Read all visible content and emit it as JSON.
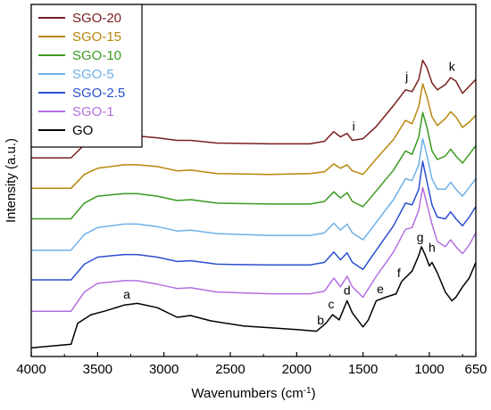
{
  "chart_data": {
    "type": "line",
    "xlabel": "Wavenumbers (cm",
    "xlabel_sup": "-1",
    "xlabel_tail": ")",
    "ylabel": "Intensity (a.u.)",
    "x_reversed": true,
    "xlim": [
      4000,
      650
    ],
    "x_ticks": [
      {
        "value": 4000,
        "label": "4000"
      },
      {
        "value": 3500,
        "label": "3500"
      },
      {
        "value": 3000,
        "label": "3000"
      },
      {
        "value": 2500,
        "label": "2500"
      },
      {
        "value": 2000,
        "label": "2000"
      },
      {
        "value": 1500,
        "label": "1500"
      },
      {
        "value": 1000,
        "label": "1000"
      },
      {
        "value": 650,
        "label": "650"
      }
    ],
    "y_ticks_shown": false,
    "legend_position": "top-left",
    "series": [
      {
        "name": "SGO-20",
        "color": "#7a1f1f",
        "offset": 10.6,
        "points": [
          [
            4000,
            0.6
          ],
          [
            3700,
            0.6
          ],
          [
            3600,
            1.35
          ],
          [
            3500,
            1.7
          ],
          [
            3300,
            1.85
          ],
          [
            3200,
            1.85
          ],
          [
            3050,
            1.75
          ],
          [
            2900,
            1.6
          ],
          [
            2800,
            1.6
          ],
          [
            2600,
            1.45
          ],
          [
            2200,
            1.4
          ],
          [
            1900,
            1.4
          ],
          [
            1790,
            1.55
          ],
          [
            1720,
            2.1
          ],
          [
            1670,
            1.8
          ],
          [
            1620,
            2.0
          ],
          [
            1580,
            1.6
          ],
          [
            1500,
            1.7
          ],
          [
            1400,
            2.4
          ],
          [
            1270,
            3.6
          ],
          [
            1180,
            4.5
          ],
          [
            1130,
            4.4
          ],
          [
            1080,
            5.1
          ],
          [
            1050,
            6.2
          ],
          [
            1020,
            5.8
          ],
          [
            980,
            4.9
          ],
          [
            940,
            4.5
          ],
          [
            880,
            4.8
          ],
          [
            840,
            5.2
          ],
          [
            800,
            5.0
          ],
          [
            750,
            4.3
          ],
          [
            700,
            4.7
          ],
          [
            650,
            5.1
          ]
        ]
      },
      {
        "name": "SGO-15",
        "color": "#b8860b",
        "offset": 8.85,
        "points": [
          [
            4000,
            0.6
          ],
          [
            3700,
            0.6
          ],
          [
            3600,
            1.4
          ],
          [
            3500,
            1.75
          ],
          [
            3300,
            1.95
          ],
          [
            3200,
            1.95
          ],
          [
            3050,
            1.85
          ],
          [
            2900,
            1.6
          ],
          [
            2800,
            1.65
          ],
          [
            2600,
            1.45
          ],
          [
            2200,
            1.4
          ],
          [
            1900,
            1.45
          ],
          [
            1790,
            1.55
          ],
          [
            1720,
            2.0
          ],
          [
            1670,
            1.75
          ],
          [
            1620,
            1.95
          ],
          [
            1580,
            1.6
          ],
          [
            1500,
            1.4
          ],
          [
            1400,
            2.3
          ],
          [
            1270,
            3.4
          ],
          [
            1180,
            4.5
          ],
          [
            1130,
            4.3
          ],
          [
            1080,
            5.3
          ],
          [
            1050,
            6.6
          ],
          [
            1020,
            5.9
          ],
          [
            980,
            4.7
          ],
          [
            940,
            4.2
          ],
          [
            880,
            4.6
          ],
          [
            840,
            5.0
          ],
          [
            800,
            4.7
          ],
          [
            750,
            4.1
          ],
          [
            700,
            4.4
          ],
          [
            650,
            4.8
          ]
        ]
      },
      {
        "name": "SGO-10",
        "color": "#3a9a1f",
        "offset": 7.1,
        "points": [
          [
            4000,
            0.6
          ],
          [
            3700,
            0.6
          ],
          [
            3600,
            1.5
          ],
          [
            3500,
            1.9
          ],
          [
            3300,
            2.05
          ],
          [
            3200,
            2.05
          ],
          [
            3050,
            1.9
          ],
          [
            2900,
            1.65
          ],
          [
            2800,
            1.7
          ],
          [
            2600,
            1.5
          ],
          [
            2200,
            1.45
          ],
          [
            1900,
            1.45
          ],
          [
            1790,
            1.6
          ],
          [
            1720,
            2.15
          ],
          [
            1670,
            1.8
          ],
          [
            1620,
            2.1
          ],
          [
            1580,
            1.6
          ],
          [
            1500,
            1.3
          ],
          [
            1400,
            2.2
          ],
          [
            1270,
            3.4
          ],
          [
            1180,
            4.5
          ],
          [
            1130,
            4.3
          ],
          [
            1080,
            5.3
          ],
          [
            1050,
            6.7
          ],
          [
            1020,
            5.9
          ],
          [
            980,
            4.5
          ],
          [
            940,
            4.0
          ],
          [
            880,
            4.2
          ],
          [
            840,
            4.6
          ],
          [
            800,
            4.2
          ],
          [
            750,
            3.8
          ],
          [
            700,
            4.3
          ],
          [
            650,
            4.8
          ]
        ]
      },
      {
        "name": "SGO-5",
        "color": "#6fb0e8",
        "offset": 5.3,
        "points": [
          [
            4000,
            0.6
          ],
          [
            3700,
            0.6
          ],
          [
            3600,
            1.5
          ],
          [
            3500,
            1.9
          ],
          [
            3300,
            2.1
          ],
          [
            3200,
            2.1
          ],
          [
            3050,
            1.95
          ],
          [
            2900,
            1.7
          ],
          [
            2800,
            1.75
          ],
          [
            2600,
            1.55
          ],
          [
            2200,
            1.45
          ],
          [
            1900,
            1.45
          ],
          [
            1790,
            1.6
          ],
          [
            1720,
            2.15
          ],
          [
            1670,
            1.75
          ],
          [
            1620,
            2.1
          ],
          [
            1580,
            1.6
          ],
          [
            1500,
            1.2
          ],
          [
            1400,
            2.2
          ],
          [
            1270,
            3.5
          ],
          [
            1180,
            4.7
          ],
          [
            1130,
            4.6
          ],
          [
            1080,
            5.5
          ],
          [
            1050,
            7.0
          ],
          [
            1020,
            6.1
          ],
          [
            980,
            4.7
          ],
          [
            940,
            4.1
          ],
          [
            880,
            4.1
          ],
          [
            840,
            4.5
          ],
          [
            800,
            4.1
          ],
          [
            750,
            3.7
          ],
          [
            700,
            4.2
          ],
          [
            650,
            4.7
          ]
        ]
      },
      {
        "name": "SGO-2.5",
        "color": "#2a4fd0",
        "offset": 3.6,
        "points": [
          [
            4000,
            0.6
          ],
          [
            3700,
            0.6
          ],
          [
            3600,
            1.5
          ],
          [
            3500,
            1.9
          ],
          [
            3300,
            2.05
          ],
          [
            3200,
            2.05
          ],
          [
            3050,
            1.9
          ],
          [
            2900,
            1.65
          ],
          [
            2800,
            1.7
          ],
          [
            2600,
            1.5
          ],
          [
            2200,
            1.45
          ],
          [
            1900,
            1.45
          ],
          [
            1790,
            1.6
          ],
          [
            1720,
            2.2
          ],
          [
            1670,
            1.75
          ],
          [
            1620,
            2.15
          ],
          [
            1580,
            1.6
          ],
          [
            1500,
            1.2
          ],
          [
            1400,
            2.3
          ],
          [
            1270,
            3.7
          ],
          [
            1180,
            5.0
          ],
          [
            1130,
            4.9
          ],
          [
            1080,
            5.8
          ],
          [
            1050,
            7.4
          ],
          [
            1020,
            6.3
          ],
          [
            980,
            4.9
          ],
          [
            940,
            4.2
          ],
          [
            880,
            4.1
          ],
          [
            840,
            4.5
          ],
          [
            800,
            4.1
          ],
          [
            750,
            3.7
          ],
          [
            700,
            4.2
          ],
          [
            650,
            4.8
          ]
        ]
      },
      {
        "name": "SGO-1",
        "color": "#b46ee0",
        "offset": 1.8,
        "points": [
          [
            4000,
            0.6
          ],
          [
            3700,
            0.6
          ],
          [
            3600,
            1.7
          ],
          [
            3500,
            2.2
          ],
          [
            3300,
            2.35
          ],
          [
            3200,
            2.35
          ],
          [
            3050,
            2.15
          ],
          [
            2900,
            1.9
          ],
          [
            2800,
            1.95
          ],
          [
            2600,
            1.7
          ],
          [
            2200,
            1.6
          ],
          [
            1900,
            1.6
          ],
          [
            1790,
            1.75
          ],
          [
            1720,
            2.5
          ],
          [
            1670,
            2.0
          ],
          [
            1620,
            2.6
          ],
          [
            1580,
            2.0
          ],
          [
            1500,
            1.4
          ],
          [
            1400,
            2.6
          ],
          [
            1270,
            4.0
          ],
          [
            1180,
            5.3
          ],
          [
            1130,
            5.4
          ],
          [
            1080,
            6.4
          ],
          [
            1050,
            7.7
          ],
          [
            1020,
            6.8
          ],
          [
            980,
            5.6
          ],
          [
            940,
            4.6
          ],
          [
            880,
            4.3
          ],
          [
            840,
            4.7
          ],
          [
            800,
            4.3
          ],
          [
            750,
            3.9
          ],
          [
            700,
            4.4
          ],
          [
            650,
            5.1
          ]
        ]
      },
      {
        "name": "GO",
        "color": "#000000",
        "offset": 0,
        "points": [
          [
            4000,
            0.3
          ],
          [
            3700,
            0.5
          ],
          [
            3650,
            1.7
          ],
          [
            3550,
            2.2
          ],
          [
            3450,
            2.4
          ],
          [
            3300,
            2.75
          ],
          [
            3200,
            2.85
          ],
          [
            3050,
            2.6
          ],
          [
            2900,
            2.05
          ],
          [
            2800,
            2.15
          ],
          [
            2650,
            1.85
          ],
          [
            2400,
            1.55
          ],
          [
            2000,
            1.35
          ],
          [
            1850,
            1.25
          ],
          [
            1780,
            1.7
          ],
          [
            1730,
            2.2
          ],
          [
            1680,
            1.9
          ],
          [
            1620,
            3.0
          ],
          [
            1580,
            2.3
          ],
          [
            1500,
            1.5
          ],
          [
            1460,
            1.9
          ],
          [
            1400,
            3.0
          ],
          [
            1330,
            3.2
          ],
          [
            1250,
            3.4
          ],
          [
            1210,
            4.1
          ],
          [
            1130,
            4.7
          ],
          [
            1080,
            5.6
          ],
          [
            1060,
            6.1
          ],
          [
            1030,
            5.6
          ],
          [
            1000,
            5.0
          ],
          [
            980,
            5.2
          ],
          [
            940,
            4.6
          ],
          [
            880,
            3.5
          ],
          [
            830,
            3.0
          ],
          [
            800,
            3.2
          ],
          [
            750,
            3.8
          ],
          [
            700,
            4.3
          ],
          [
            650,
            5.2
          ]
        ]
      }
    ],
    "annotations": [
      {
        "text": "a",
        "x": 3280,
        "series": "GO",
        "dy": 0.35
      },
      {
        "text": "b",
        "x": 1820,
        "series": "GO",
        "dy": 0.2
      },
      {
        "text": "c",
        "x": 1740,
        "series": "GO",
        "dy": 0.45
      },
      {
        "text": "d",
        "x": 1620,
        "series": "GO",
        "dy": 0.35
      },
      {
        "text": "e",
        "x": 1370,
        "series": "GO",
        "dy": 0.35
      },
      {
        "text": "f",
        "x": 1230,
        "series": "GO",
        "dy": 0.6
      },
      {
        "text": "g",
        "x": 1070,
        "series": "GO",
        "dy": 0.55
      },
      {
        "text": "h",
        "x": 980,
        "series": "GO",
        "dy": 0.6
      },
      {
        "text": "i",
        "x": 1570,
        "series": "SGO-20",
        "dy": 0.55
      },
      {
        "text": "j",
        "x": 1170,
        "series": "SGO-20",
        "dy": 0.55
      },
      {
        "text": "k",
        "x": 830,
        "series": "SGO-20",
        "dy": 0.45
      }
    ]
  }
}
